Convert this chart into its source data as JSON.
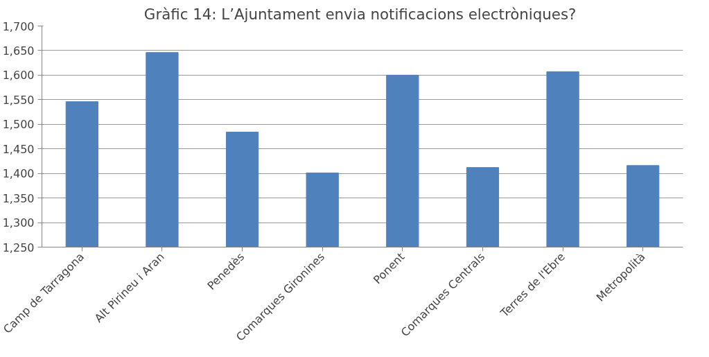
{
  "chart_data": {
    "type": "bar",
    "title": "Gràfic 14:  L’Ajuntament envia notificacions electròniques?",
    "categories": [
      "Camp de Tarragona",
      "Alt Pirineu i Aran",
      "Penedès",
      "Comarques Gironines",
      "Ponent",
      "Comarques Centrals",
      "Terres de l'Ebre",
      "Metropolità"
    ],
    "values": [
      1546,
      1646,
      1484,
      1401,
      1600,
      1412,
      1607,
      1416
    ],
    "color": "#4f81bd",
    "ylim": [
      1250,
      1700
    ],
    "yticks": [
      {
        "value": 1250,
        "label": "1,250"
      },
      {
        "value": 1300,
        "label": "1,300"
      },
      {
        "value": 1350,
        "label": "1,350"
      },
      {
        "value": 1400,
        "label": "1,400"
      },
      {
        "value": 1450,
        "label": "1,450"
      },
      {
        "value": 1500,
        "label": "1,500"
      },
      {
        "value": 1550,
        "label": "1,550"
      },
      {
        "value": 1600,
        "label": "1,600"
      },
      {
        "value": 1650,
        "label": "1,650"
      },
      {
        "value": 1700,
        "label": "1,700"
      }
    ],
    "grid": "y"
  }
}
